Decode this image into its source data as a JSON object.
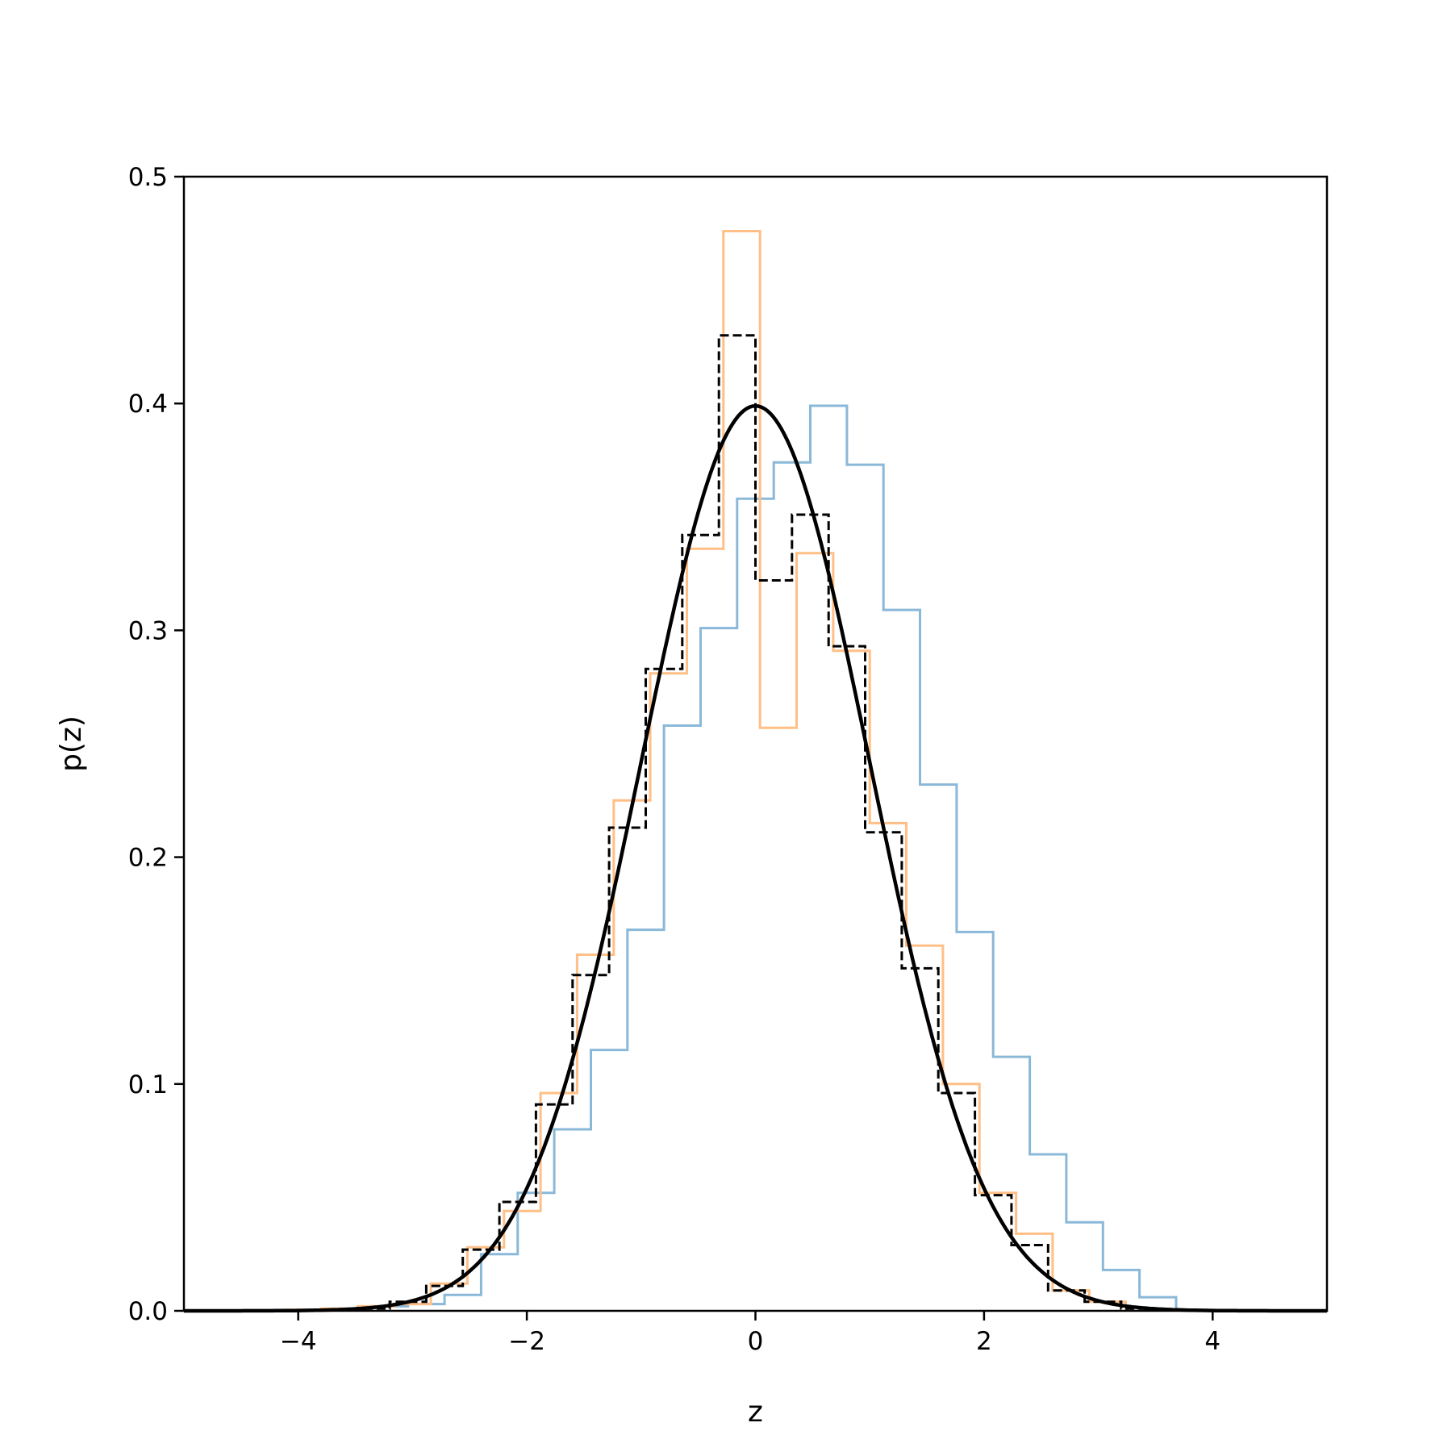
{
  "chart_data": {
    "type": "histogram-step",
    "title": "",
    "xlabel": "z",
    "ylabel": "p(z)",
    "xlim": [
      -5,
      5
    ],
    "ylim": [
      0,
      0.5
    ],
    "grid": false,
    "legend": "none",
    "xticks": [
      -4,
      -2,
      0,
      2,
      4
    ],
    "xtick_labels": [
      "−4",
      "−2",
      "0",
      "2",
      "4"
    ],
    "yticks": [
      0.0,
      0.1,
      0.2,
      0.3,
      0.4,
      0.5
    ],
    "ytick_labels": [
      "0.0",
      "0.1",
      "0.2",
      "0.3",
      "0.4",
      "0.5"
    ],
    "series": [
      {
        "color": "#8ab8d8",
        "style": "solid-step",
        "bin_edges": [
          -3.68,
          -3.36,
          -3.04,
          -2.72,
          -2.4,
          -2.08,
          -1.76,
          -1.44,
          -1.12,
          -0.8,
          -0.48,
          -0.16,
          0.16,
          0.48,
          0.8,
          1.12,
          1.44,
          1.76,
          2.08,
          2.4,
          2.72,
          3.04,
          3.36,
          3.68
        ],
        "heights": [
          0.001,
          0.002,
          0.003,
          0.007,
          0.025,
          0.052,
          0.08,
          0.115,
          0.168,
          0.258,
          0.301,
          0.358,
          0.374,
          0.399,
          0.373,
          0.309,
          0.232,
          0.167,
          0.112,
          0.069,
          0.039,
          0.018,
          0.006
        ]
      },
      {
        "color": "#ffbf86",
        "style": "solid-step",
        "bin_edges": [
          -4.12,
          -3.8,
          -3.48,
          -3.16,
          -2.84,
          -2.52,
          -2.2,
          -1.88,
          -1.56,
          -1.24,
          -0.92,
          -0.6,
          -0.28,
          0.04,
          0.36,
          0.68,
          1.0,
          1.32,
          1.64,
          1.96,
          2.28,
          2.6,
          2.92,
          3.24
        ],
        "heights": [
          0.0005,
          0.001,
          0.002,
          0.003,
          0.012,
          0.028,
          0.044,
          0.096,
          0.157,
          0.225,
          0.281,
          0.336,
          0.476,
          0.257,
          0.334,
          0.291,
          0.215,
          0.161,
          0.1,
          0.052,
          0.034,
          0.009,
          0.004
        ]
      },
      {
        "color": "#000000",
        "style": "dashed-step",
        "bin_edges": [
          -3.52,
          -3.2,
          -2.88,
          -2.56,
          -2.24,
          -1.92,
          -1.6,
          -1.28,
          -0.96,
          -0.64,
          -0.32,
          0.0,
          0.32,
          0.64,
          0.96,
          1.28,
          1.6,
          1.92,
          2.24,
          2.56,
          2.88,
          3.2,
          3.52
        ],
        "heights": [
          0.001,
          0.004,
          0.011,
          0.027,
          0.048,
          0.091,
          0.148,
          0.213,
          0.283,
          0.342,
          0.43,
          0.322,
          0.351,
          0.293,
          0.211,
          0.151,
          0.096,
          0.051,
          0.029,
          0.009,
          0.004,
          0.001
        ]
      },
      {
        "color": "#000000",
        "style": "solid-line",
        "function": "standard-normal-pdf",
        "mean": 0,
        "std": 1,
        "x_range": [
          -5,
          5
        ]
      }
    ]
  }
}
